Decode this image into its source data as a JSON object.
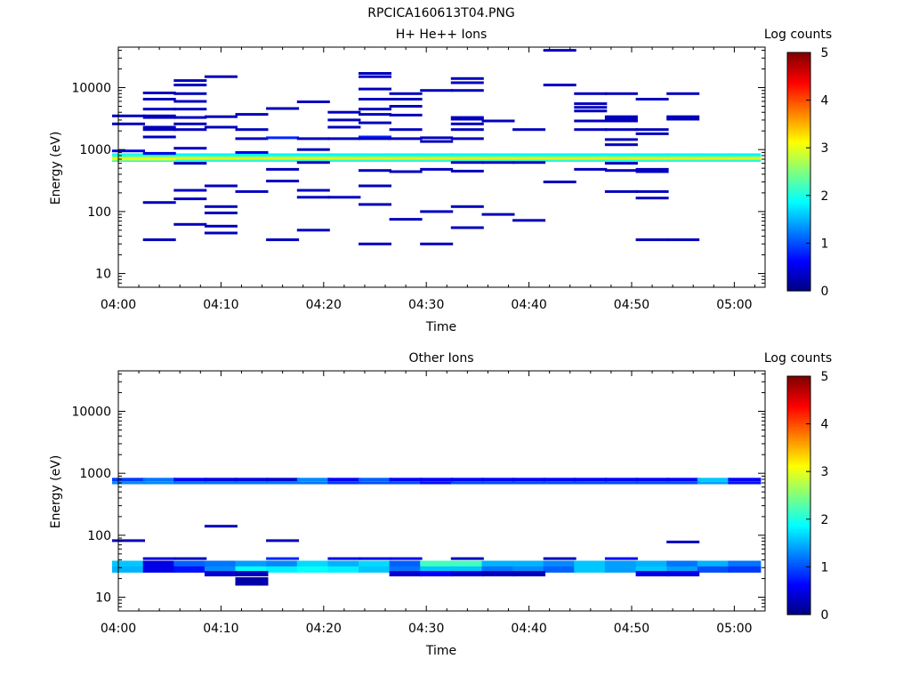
{
  "figure": {
    "filename": "RPCICA160613T04.PNG"
  },
  "chart_data": [
    {
      "type": "heatmap",
      "title": "H+ He++ Ions",
      "xlabel": "Time",
      "ylabel": "Energy (eV)",
      "x_range": [
        "04:00",
        "05:03"
      ],
      "x_ticks": [
        "04:00",
        "04:10",
        "04:20",
        "04:30",
        "04:40",
        "04:50",
        "05:00"
      ],
      "y_scale": "log",
      "ylim": [
        6,
        45000
      ],
      "y_ticks": [
        "10",
        "100",
        "1000",
        "10000"
      ],
      "colorbar": {
        "label": "Log counts",
        "range": [
          0,
          5
        ],
        "ticks": [
          "0",
          "1",
          "2",
          "3",
          "4",
          "5"
        ]
      },
      "time_bins": [
        "04:01",
        "04:04",
        "04:07",
        "04:10",
        "04:13",
        "04:16",
        "04:19",
        "04:22",
        "04:25",
        "04:28",
        "04:31",
        "04:34",
        "04:37",
        "04:40",
        "04:43",
        "04:46",
        "04:49",
        "04:52",
        "04:55",
        "04:58",
        "05:01"
      ],
      "dominant_band": {
        "energy_range_eV": [
          650,
          850
        ],
        "log_counts_range": [
          1.5,
          3.2
        ]
      },
      "cells": [
        [
          0,
          3500,
          0.3
        ],
        [
          0,
          2600,
          0.3
        ],
        [
          0,
          950,
          0.5
        ],
        [
          0,
          820,
          2.0
        ],
        [
          0,
          700,
          3.0
        ],
        [
          1,
          3500,
          0.3
        ],
        [
          1,
          2100,
          0.3
        ],
        [
          1,
          8200,
          0.3
        ],
        [
          1,
          6500,
          0.3
        ],
        [
          1,
          4500,
          0.3
        ],
        [
          1,
          3300,
          0.3
        ],
        [
          1,
          2300,
          0.3
        ],
        [
          1,
          1600,
          0.3
        ],
        [
          1,
          870,
          0.5
        ],
        [
          1,
          700,
          3.0
        ],
        [
          1,
          140,
          0.3
        ],
        [
          1,
          35,
          0.3
        ],
        [
          2,
          2600,
          0.3
        ],
        [
          2,
          2100,
          0.3
        ],
        [
          2,
          13000,
          0.3
        ],
        [
          2,
          11000,
          0.3
        ],
        [
          2,
          8000,
          0.3
        ],
        [
          2,
          6000,
          0.3
        ],
        [
          2,
          4500,
          0.3
        ],
        [
          2,
          3300,
          0.3
        ],
        [
          2,
          1050,
          0.3
        ],
        [
          2,
          600,
          0.3
        ],
        [
          2,
          220,
          0.3
        ],
        [
          2,
          160,
          0.3
        ],
        [
          2,
          62,
          0.3
        ],
        [
          3,
          2300,
          0.3
        ],
        [
          3,
          15000,
          0.3
        ],
        [
          3,
          3400,
          0.3
        ],
        [
          3,
          2300,
          0.3
        ],
        [
          3,
          260,
          0.3
        ],
        [
          3,
          120,
          0.3
        ],
        [
          3,
          95,
          0.3
        ],
        [
          3,
          58,
          0.3
        ],
        [
          3,
          45,
          0.3
        ],
        [
          4,
          3700,
          0.3
        ],
        [
          4,
          2100,
          0.3
        ],
        [
          4,
          1500,
          0.3
        ],
        [
          4,
          900,
          0.5
        ],
        [
          4,
          210,
          0.3
        ],
        [
          5,
          4600,
          0.3
        ],
        [
          5,
          1550,
          0.8
        ],
        [
          5,
          480,
          0.3
        ],
        [
          5,
          310,
          0.3
        ],
        [
          5,
          35,
          0.3
        ],
        [
          6,
          5900,
          0.3
        ],
        [
          6,
          1500,
          0.3
        ],
        [
          6,
          1000,
          0.3
        ],
        [
          6,
          620,
          0.3
        ],
        [
          6,
          220,
          0.3
        ],
        [
          6,
          170,
          0.3
        ],
        [
          6,
          50,
          0.3
        ],
        [
          7,
          3000,
          0.3
        ],
        [
          7,
          2300,
          0.3
        ],
        [
          7,
          4000,
          0.3
        ],
        [
          7,
          1500,
          0.3
        ],
        [
          7,
          170,
          0.3
        ],
        [
          8,
          3700,
          0.3
        ],
        [
          8,
          17000,
          0.3
        ],
        [
          8,
          15000,
          0.3
        ],
        [
          8,
          9500,
          0.3
        ],
        [
          8,
          6500,
          0.3
        ],
        [
          8,
          4500,
          0.3
        ],
        [
          8,
          2700,
          0.3
        ],
        [
          8,
          1600,
          0.8
        ],
        [
          8,
          1500,
          0.3
        ],
        [
          8,
          460,
          0.3
        ],
        [
          8,
          260,
          0.3
        ],
        [
          8,
          130,
          0.3
        ],
        [
          8,
          30,
          0.3
        ],
        [
          9,
          8000,
          0.3
        ],
        [
          9,
          6500,
          0.3
        ],
        [
          9,
          5000,
          0.3
        ],
        [
          9,
          3600,
          0.3
        ],
        [
          9,
          2100,
          0.3
        ],
        [
          9,
          1500,
          0.3
        ],
        [
          9,
          440,
          0.3
        ],
        [
          9,
          75,
          0.3
        ],
        [
          10,
          9000,
          0.3
        ],
        [
          10,
          1550,
          0.3
        ],
        [
          10,
          1350,
          0.3
        ],
        [
          10,
          480,
          0.3
        ],
        [
          10,
          100,
          0.3
        ],
        [
          10,
          30,
          0.3
        ],
        [
          11,
          3100,
          0.3
        ],
        [
          11,
          2600,
          0.3
        ],
        [
          11,
          14000,
          0.3
        ],
        [
          11,
          12000,
          0.3
        ],
        [
          11,
          9000,
          0.3
        ],
        [
          11,
          3300,
          0.3
        ],
        [
          11,
          2100,
          0.3
        ],
        [
          11,
          1500,
          0.3
        ],
        [
          11,
          620,
          0.3
        ],
        [
          11,
          450,
          0.3
        ],
        [
          11,
          120,
          0.3
        ],
        [
          11,
          55,
          0.3
        ],
        [
          12,
          2900,
          0.3
        ],
        [
          12,
          620,
          0.3
        ],
        [
          12,
          90,
          0.3
        ],
        [
          13,
          2100,
          0.3
        ],
        [
          13,
          620,
          0.3
        ],
        [
          13,
          72,
          0.3
        ],
        [
          14,
          40000,
          0.3
        ],
        [
          14,
          11000,
          0.3
        ],
        [
          14,
          300,
          0.3
        ],
        [
          15,
          2900,
          0.3
        ],
        [
          15,
          8000,
          0.3
        ],
        [
          15,
          5500,
          0.3
        ],
        [
          15,
          4800,
          0.3
        ],
        [
          15,
          4200,
          0.3
        ],
        [
          15,
          2100,
          0.3
        ],
        [
          15,
          480,
          0.3
        ],
        [
          16,
          3400,
          0.3
        ],
        [
          16,
          3100,
          0.3
        ],
        [
          16,
          2100,
          0.3
        ],
        [
          16,
          8000,
          0.3
        ],
        [
          16,
          2900,
          0.3
        ],
        [
          16,
          1450,
          0.3
        ],
        [
          16,
          1200,
          0.3
        ],
        [
          16,
          600,
          0.3
        ],
        [
          16,
          460,
          0.3
        ],
        [
          16,
          210,
          0.3
        ],
        [
          17,
          6500,
          0.3
        ],
        [
          17,
          2100,
          0.3
        ],
        [
          17,
          1800,
          0.3
        ],
        [
          17,
          480,
          0.3
        ],
        [
          17,
          440,
          0.3
        ],
        [
          17,
          210,
          0.3
        ],
        [
          17,
          165,
          0.3
        ],
        [
          17,
          35,
          0.3
        ],
        [
          18,
          3400,
          0.3
        ],
        [
          18,
          3100,
          0.3
        ],
        [
          18,
          8000,
          0.3
        ],
        [
          18,
          35,
          0.3
        ]
      ]
    },
    {
      "type": "heatmap",
      "title": "Other Ions",
      "xlabel": "Time",
      "ylabel": "Energy (eV)",
      "x_range": [
        "04:00",
        "05:03"
      ],
      "x_ticks": [
        "04:00",
        "04:10",
        "04:20",
        "04:30",
        "04:40",
        "04:50",
        "05:00"
      ],
      "y_scale": "log",
      "ylim": [
        6,
        45000
      ],
      "y_ticks": [
        "10",
        "100",
        "1000",
        "10000"
      ],
      "colorbar": {
        "label": "Log counts",
        "range": [
          0,
          5
        ],
        "ticks": [
          "0",
          "1",
          "2",
          "3",
          "4",
          "5"
        ]
      },
      "time_bins": [
        "04:01",
        "04:04",
        "04:07",
        "04:10",
        "04:13",
        "04:16",
        "04:19",
        "04:22",
        "04:25",
        "04:28",
        "04:31",
        "04:34",
        "04:37",
        "04:40",
        "04:43",
        "04:46",
        "04:49",
        "04:52",
        "04:55",
        "04:58",
        "05:01"
      ],
      "band_800_eV": [
        0.9,
        1.2,
        0.6,
        0.5,
        0.5,
        0.4,
        1.3,
        0.6,
        1.1,
        0.6,
        0.6,
        0.6,
        0.6,
        0.6,
        0.6,
        0.6,
        0.6,
        0.6,
        0.6,
        1.6,
        0.6
      ],
      "band_700_eV": [
        1.3,
        1.3,
        1.2,
        1.2,
        1.2,
        1.2,
        1.2,
        0.9,
        1.0,
        1.0,
        0.7,
        1.0,
        1.0,
        1.0,
        1.0,
        1.0,
        1.0,
        1.0,
        1.0,
        1.4,
        0.7
      ],
      "band_34_eV": [
        1.6,
        0.5,
        1.1,
        1.2,
        1.4,
        1.3,
        1.7,
        1.5,
        1.7,
        1.1,
        2.2,
        2.2,
        1.5,
        1.5,
        1.3,
        1.6,
        1.4,
        1.5,
        1.2,
        1.5,
        1.2
      ],
      "band_28_eV": [
        1.5,
        0.5,
        0.7,
        1.3,
        1.9,
        1.8,
        1.9,
        1.8,
        1.6,
        1.2,
        1.6,
        1.6,
        1.2,
        1.3,
        1.1,
        1.6,
        1.4,
        1.6,
        1.4,
        1.0,
        0.9
      ],
      "extra_cells": [
        [
          0,
          82,
          0.3
        ],
        [
          1,
          42,
          0.4
        ],
        [
          2,
          42,
          0.3
        ],
        [
          3,
          24,
          0.4
        ],
        [
          3,
          140,
          0.3
        ],
        [
          4,
          24,
          0.3
        ],
        [
          4,
          19,
          0.2
        ],
        [
          4,
          17,
          0.2
        ],
        [
          5,
          82,
          0.3
        ],
        [
          5,
          42,
          0.8
        ],
        [
          7,
          42,
          0.5
        ],
        [
          8,
          42,
          0.5
        ],
        [
          9,
          42,
          0.5
        ],
        [
          9,
          24,
          0.4
        ],
        [
          10,
          24,
          0.6
        ],
        [
          11,
          24,
          0.4
        ],
        [
          11,
          42,
          0.3
        ],
        [
          12,
          24,
          0.3
        ],
        [
          13,
          24,
          0.3
        ],
        [
          14,
          42,
          0.3
        ],
        [
          16,
          42,
          0.6
        ],
        [
          17,
          24,
          0.5
        ],
        [
          18,
          24,
          0.5
        ],
        [
          18,
          78,
          0.3
        ]
      ]
    }
  ]
}
